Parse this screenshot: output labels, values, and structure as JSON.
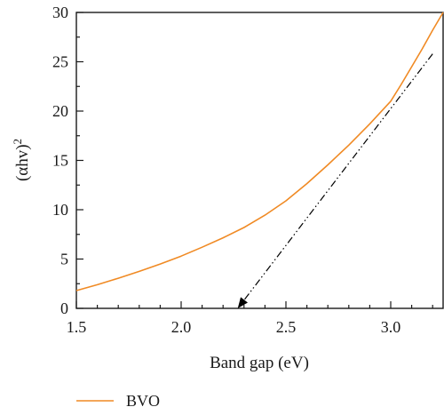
{
  "chart_data": {
    "type": "line",
    "xlabel": "Band gap (eV)",
    "ylabel_base": "(αhv)",
    "ylabel_sup": "2",
    "xlim": [
      1.5,
      3.25
    ],
    "ylim": [
      0,
      30
    ],
    "xticks": [
      "1.5",
      "2.0",
      "2.5",
      "3.0"
    ],
    "yticks": [
      "0",
      "5",
      "10",
      "15",
      "20",
      "25",
      "30"
    ],
    "x_minor_step": 0.1,
    "y_minor_step": 2.5,
    "grid": false,
    "legend_position": "below-left",
    "series": [
      {
        "name": "BVO",
        "color": "#f08a24",
        "x": [
          1.5,
          1.6,
          1.7,
          1.8,
          1.9,
          2.0,
          2.1,
          2.2,
          2.3,
          2.4,
          2.5,
          2.6,
          2.7,
          2.8,
          2.9,
          3.0,
          3.05,
          3.1,
          3.15,
          3.2,
          3.25
        ],
        "y": [
          1.8,
          2.4,
          3.05,
          3.75,
          4.5,
          5.3,
          6.2,
          7.15,
          8.2,
          9.45,
          10.9,
          12.65,
          14.55,
          16.55,
          18.7,
          21.0,
          22.7,
          24.5,
          26.3,
          28.2,
          30.0
        ]
      }
    ],
    "tangent": {
      "color": "#000000",
      "style": "dash-dot-dot",
      "x": [
        3.2,
        2.27
      ],
      "y": [
        25.8,
        0
      ]
    }
  }
}
